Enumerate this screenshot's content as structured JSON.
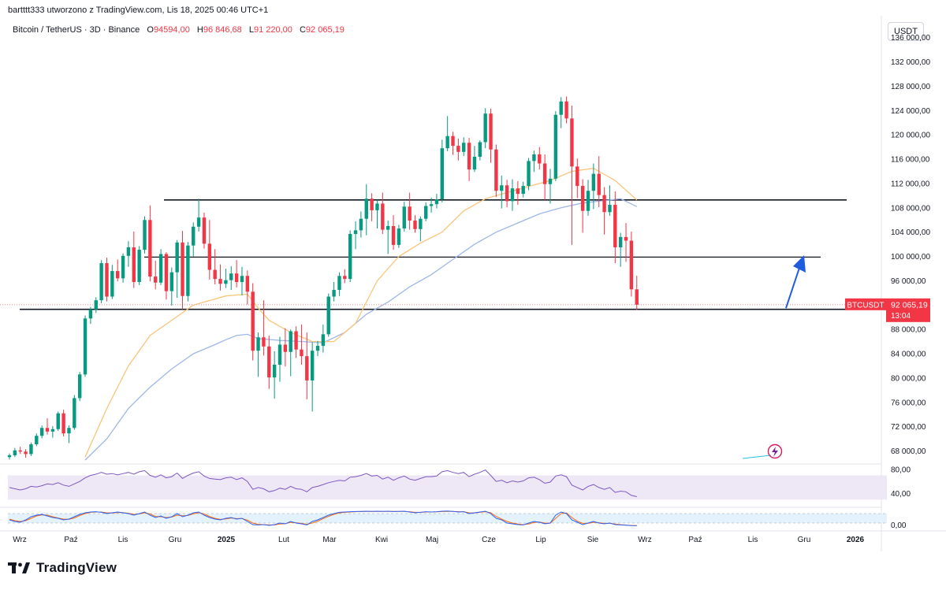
{
  "header": {
    "published_by": "bartttt333 utworzono z TradingView.com, Lis 18, 2025 00:46 UTC+1",
    "symbol": "Bitcoin / TetherUS · 3D · Binance",
    "ohlc": [
      {
        "k": "O",
        "v": "94594,00"
      },
      {
        "k": "H",
        "v": "96 846,68"
      },
      {
        "k": "L",
        "v": "91 220,00"
      },
      {
        "k": "C",
        "v": "92 065,19"
      }
    ],
    "currency": "USDT"
  },
  "brand": {
    "name": "TradingView"
  },
  "colors": {
    "up": "#089981",
    "down": "#f23645",
    "ma_fast": "#f9c57a",
    "ma_slow": "#9db7e8",
    "rsi": "#7e57c2",
    "rsi_band": "#ede7f6",
    "stoch_k": "#2962ff",
    "stoch_d": "#ff6d00",
    "level": "#131722",
    "arrow": "#1e5de0"
  },
  "chart_data": {
    "type": "candlestick",
    "interval": "3D",
    "y_axis": {
      "min": 66000,
      "max": 137000,
      "ticks": [
        {
          "v": 136000,
          "label": "136 000,00"
        },
        {
          "v": 132000,
          "label": "132 000,00"
        },
        {
          "v": 128000,
          "label": "128 000,00"
        },
        {
          "v": 124000,
          "label": "124 000,00"
        },
        {
          "v": 120000,
          "label": "120 000,00"
        },
        {
          "v": 116000,
          "label": "116 000,00"
        },
        {
          "v": 112000,
          "label": "112 000,00"
        },
        {
          "v": 108000,
          "label": "108 000,00"
        },
        {
          "v": 104000,
          "label": "104 000,00"
        },
        {
          "v": 100000,
          "label": "100 000,00"
        },
        {
          "v": 96000,
          "label": "96 000,00"
        },
        {
          "v": 88000,
          "label": "88 000,00"
        },
        {
          "v": 84000,
          "label": "84 000,00"
        },
        {
          "v": 80000,
          "label": "80 000,00"
        },
        {
          "v": 76000,
          "label": "76 000,00"
        },
        {
          "v": 72000,
          "label": "72 000,00"
        },
        {
          "v": 68000,
          "label": "68 000,00"
        }
      ]
    },
    "x_labels": [
      "Wrz",
      "Paź",
      "Lis",
      "Gru",
      "2025",
      "Lut",
      "Mar",
      "Kwi",
      "Maj",
      "Cze",
      "Lip",
      "Sie",
      "Wrz",
      "Paź",
      "Lis",
      "Gru",
      "2026"
    ],
    "last_price": {
      "symbol": "BTCUSDT",
      "price": "92 065,19",
      "countdown": "13:04",
      "value": 92065
    },
    "levels": [
      {
        "price": 109300,
        "from_label": "Gru",
        "to_label": "Gru"
      },
      {
        "price": 99900,
        "from_label": "Lis",
        "to_label": "Gru"
      },
      {
        "price": 91300,
        "from_label": "Wrz",
        "to_label": "Gru"
      }
    ],
    "candles": [
      [
        67000,
        67600,
        66600,
        67300
      ],
      [
        67300,
        68500,
        67000,
        68100
      ],
      [
        68100,
        68700,
        67500,
        67900
      ],
      [
        67900,
        68300,
        66900,
        67500
      ],
      [
        67500,
        69400,
        67200,
        69100
      ],
      [
        69100,
        70900,
        68800,
        70500
      ],
      [
        70500,
        72200,
        70100,
        71800
      ],
      [
        71800,
        73400,
        70700,
        71200
      ],
      [
        71200,
        72100,
        70200,
        71600
      ],
      [
        71600,
        74500,
        71300,
        74200
      ],
      [
        74200,
        74800,
        70400,
        70900
      ],
      [
        70900,
        72200,
        69300,
        71800
      ],
      [
        71800,
        77200,
        71500,
        76700
      ],
      [
        76700,
        81000,
        76200,
        80600
      ],
      [
        80600,
        90300,
        80200,
        89800
      ],
      [
        89800,
        91700,
        88900,
        91300
      ],
      [
        91300,
        93300,
        90700,
        92800
      ],
      [
        92800,
        99400,
        92300,
        98900
      ],
      [
        98900,
        99800,
        92600,
        93400
      ],
      [
        93400,
        98600,
        93000,
        97600
      ],
      [
        97600,
        99500,
        95900,
        96400
      ],
      [
        96400,
        100500,
        95700,
        100100
      ],
      [
        100100,
        102500,
        98300,
        101500
      ],
      [
        101500,
        104100,
        94800,
        95800
      ],
      [
        95800,
        101700,
        95300,
        101100
      ],
      [
        101100,
        106600,
        100500,
        106000
      ],
      [
        106000,
        108400,
        95900,
        96700
      ],
      [
        96700,
        99300,
        94600,
        95700
      ],
      [
        95700,
        101200,
        95300,
        100400
      ],
      [
        100400,
        100700,
        92900,
        94300
      ],
      [
        94300,
        98200,
        91900,
        97400
      ],
      [
        97400,
        102700,
        93200,
        102300
      ],
      [
        102300,
        104200,
        91300,
        93500
      ],
      [
        93500,
        102400,
        92600,
        101800
      ],
      [
        101800,
        105600,
        100000,
        104900
      ],
      [
        104900,
        109500,
        104100,
        106400
      ],
      [
        106400,
        107200,
        101300,
        102100
      ],
      [
        102100,
        106000,
        96200,
        97800
      ],
      [
        97800,
        101200,
        95400,
        96300
      ],
      [
        96300,
        98700,
        94400,
        95500
      ],
      [
        95500,
        98000,
        94800,
        96100
      ],
      [
        96100,
        98400,
        94500,
        97200
      ],
      [
        97200,
        99400,
        94900,
        95800
      ],
      [
        95800,
        98300,
        93600,
        96800
      ],
      [
        96800,
        97700,
        92100,
        94200
      ],
      [
        94200,
        95600,
        82900,
        84500
      ],
      [
        84500,
        87500,
        80200,
        86700
      ],
      [
        86700,
        92800,
        83700,
        85200
      ],
      [
        85200,
        87000,
        78200,
        80100
      ],
      [
        80100,
        84400,
        76600,
        82200
      ],
      [
        82200,
        86800,
        79400,
        85500
      ],
      [
        85500,
        88200,
        81900,
        84300
      ],
      [
        84300,
        88000,
        80300,
        87700
      ],
      [
        87700,
        88500,
        83300,
        84700
      ],
      [
        84700,
        88800,
        82200,
        83600
      ],
      [
        83600,
        87500,
        76500,
        79600
      ],
      [
        79600,
        85900,
        74500,
        84500
      ],
      [
        84500,
        86100,
        83600,
        85300
      ],
      [
        85300,
        88800,
        84200,
        87200
      ],
      [
        87200,
        93900,
        86800,
        93400
      ],
      [
        93400,
        95800,
        92600,
        94500
      ],
      [
        94500,
        97400,
        93500,
        96800
      ],
      [
        96800,
        97900,
        95600,
        96300
      ],
      [
        96300,
        104300,
        95800,
        103700
      ],
      [
        103700,
        105800,
        101200,
        104300
      ],
      [
        104300,
        107400,
        103100,
        106200
      ],
      [
        106200,
        111900,
        103500,
        109500
      ],
      [
        109500,
        110400,
        105800,
        107600
      ],
      [
        107600,
        109300,
        104600,
        108700
      ],
      [
        108700,
        110500,
        103700,
        104400
      ],
      [
        104400,
        105900,
        100400,
        105000
      ],
      [
        105000,
        106800,
        101100,
        101900
      ],
      [
        101900,
        105200,
        101400,
        104600
      ],
      [
        104600,
        109000,
        104100,
        108200
      ],
      [
        108200,
        110500,
        104400,
        105900
      ],
      [
        105900,
        106800,
        103900,
        104500
      ],
      [
        104500,
        106600,
        102500,
        106200
      ],
      [
        106200,
        108900,
        105800,
        108300
      ],
      [
        108300,
        109700,
        107200,
        108600
      ],
      [
        108600,
        110300,
        107900,
        109400
      ],
      [
        109400,
        119200,
        108900,
        117800
      ],
      [
        117800,
        123100,
        117300,
        119800
      ],
      [
        119800,
        120500,
        116700,
        118200
      ],
      [
        118200,
        119400,
        115800,
        117200
      ],
      [
        117200,
        119600,
        116500,
        118700
      ],
      [
        118700,
        119500,
        112400,
        114300
      ],
      [
        114300,
        118200,
        113900,
        116400
      ],
      [
        116400,
        119100,
        115800,
        118800
      ],
      [
        118800,
        124400,
        117800,
        123500
      ],
      [
        123500,
        124300,
        115400,
        117600
      ],
      [
        117600,
        118400,
        109800,
        110800
      ],
      [
        110800,
        113300,
        107900,
        111700
      ],
      [
        111700,
        112600,
        108100,
        109100
      ],
      [
        109100,
        112700,
        107500,
        111200
      ],
      [
        111200,
        112400,
        108500,
        110300
      ],
      [
        110300,
        112300,
        109700,
        111600
      ],
      [
        111600,
        116200,
        110900,
        115700
      ],
      [
        115700,
        117400,
        113900,
        116800
      ],
      [
        116800,
        118000,
        114300,
        115300
      ],
      [
        115300,
        116800,
        109300,
        111900
      ],
      [
        111900,
        114400,
        108700,
        112800
      ],
      [
        112800,
        123900,
        112400,
        123300
      ],
      [
        123300,
        126200,
        121100,
        125500
      ],
      [
        125500,
        126300,
        121900,
        122700
      ],
      [
        122700,
        124800,
        101900,
        114800
      ],
      [
        114800,
        116100,
        109600,
        111600
      ],
      [
        111600,
        112700,
        103900,
        107500
      ],
      [
        107500,
        112600,
        106700,
        110800
      ],
      [
        110800,
        115300,
        107800,
        113600
      ],
      [
        113600,
        116500,
        108100,
        110100
      ],
      [
        110100,
        111400,
        103600,
        107300
      ],
      [
        107300,
        111700,
        106700,
        108500
      ],
      [
        108500,
        110700,
        98900,
        101500
      ],
      [
        101500,
        103900,
        98300,
        103200
      ],
      [
        103200,
        105500,
        99100,
        102600
      ],
      [
        102600,
        104100,
        93400,
        94600
      ],
      [
        94594,
        96847,
        91220,
        92065
      ]
    ],
    "ma_fast": [
      [
        14,
        67000
      ],
      [
        18,
        75000
      ],
      [
        22,
        82000
      ],
      [
        26,
        87000
      ],
      [
        30,
        89500
      ],
      [
        34,
        92000
      ],
      [
        40,
        93500
      ],
      [
        44,
        93800
      ],
      [
        46,
        91500
      ],
      [
        48,
        89500
      ],
      [
        52,
        87500
      ],
      [
        56,
        86000
      ],
      [
        60,
        86000
      ],
      [
        64,
        89000
      ],
      [
        68,
        96000
      ],
      [
        72,
        100000
      ],
      [
        76,
        102200
      ],
      [
        80,
        104000
      ],
      [
        84,
        107500
      ],
      [
        88,
        109500
      ],
      [
        92,
        110500
      ],
      [
        96,
        111500
      ],
      [
        100,
        112500
      ],
      [
        104,
        114000
      ],
      [
        108,
        114500
      ],
      [
        112,
        112500
      ],
      [
        116,
        109300
      ]
    ],
    "ma_slow": [
      [
        14,
        66500
      ],
      [
        18,
        70000
      ],
      [
        22,
        75000
      ],
      [
        26,
        78500
      ],
      [
        30,
        81500
      ],
      [
        34,
        84000
      ],
      [
        38,
        85500
      ],
      [
        40,
        86300
      ],
      [
        42,
        87000
      ],
      [
        44,
        87200
      ],
      [
        46,
        86500
      ],
      [
        50,
        86200
      ],
      [
        54,
        86000
      ],
      [
        58,
        85800
      ],
      [
        62,
        87500
      ],
      [
        66,
        90500
      ],
      [
        70,
        92500
      ],
      [
        74,
        95000
      ],
      [
        78,
        97000
      ],
      [
        82,
        99500
      ],
      [
        86,
        102000
      ],
      [
        90,
        104000
      ],
      [
        94,
        105500
      ],
      [
        98,
        107000
      ],
      [
        102,
        108000
      ],
      [
        106,
        108800
      ],
      [
        110,
        109200
      ],
      [
        113,
        109500
      ],
      [
        116,
        108200
      ]
    ],
    "rsi": {
      "min": 20,
      "max": 85,
      "band": [
        30,
        70
      ],
      "ticks": [
        {
          "v": 80,
          "label": "80,00"
        },
        {
          "v": 40,
          "label": "40,00"
        }
      ],
      "values": [
        50,
        48,
        46,
        48,
        52,
        51,
        53,
        56,
        55,
        58,
        54,
        52,
        56,
        60,
        66,
        70,
        72,
        75,
        72,
        73,
        71,
        73,
        75,
        72,
        76,
        78,
        70,
        67,
        71,
        66,
        68,
        74,
        65,
        70,
        74,
        76,
        69,
        65,
        64,
        63,
        66,
        67,
        63,
        66,
        60,
        47,
        50,
        48,
        43,
        45,
        49,
        47,
        52,
        48,
        47,
        43,
        50,
        52,
        55,
        58,
        60,
        62,
        61,
        67,
        68,
        70,
        73,
        69,
        70,
        64,
        67,
        62,
        66,
        69,
        64,
        62,
        65,
        68,
        68,
        69,
        76,
        78,
        75,
        73,
        75,
        68,
        72,
        75,
        79,
        70,
        60,
        62,
        58,
        61,
        59,
        61,
        66,
        67,
        63,
        57,
        59,
        69,
        71,
        68,
        54,
        50,
        46,
        52,
        55,
        50,
        47,
        50,
        42,
        44,
        43,
        37,
        35
      ]
    },
    "stoch": {
      "min": 0,
      "max": 100,
      "ticks": [
        {
          "v": 0,
          "label": "0,00"
        }
      ],
      "k": [
        40,
        30,
        25,
        40,
        60,
        70,
        75,
        65,
        55,
        50,
        40,
        45,
        60,
        75,
        85,
        90,
        92,
        88,
        80,
        85,
        90,
        85,
        80,
        70,
        80,
        90,
        70,
        55,
        65,
        50,
        60,
        80,
        60,
        70,
        85,
        90,
        70,
        55,
        45,
        40,
        50,
        55,
        45,
        50,
        30,
        10,
        8,
        10,
        5,
        10,
        20,
        15,
        30,
        20,
        15,
        8,
        30,
        40,
        55,
        70,
        80,
        88,
        90,
        92,
        93,
        94,
        95,
        94,
        95,
        94,
        95,
        93,
        94,
        95,
        90,
        85,
        88,
        92,
        90,
        92,
        95,
        96,
        94,
        90,
        92,
        80,
        85,
        90,
        95,
        80,
        50,
        40,
        20,
        15,
        10,
        8,
        20,
        30,
        25,
        15,
        20,
        70,
        90,
        80,
        40,
        25,
        10,
        20,
        30,
        20,
        15,
        20,
        10,
        8,
        6,
        4,
        3
      ],
      "d": [
        45,
        35,
        30,
        35,
        50,
        65,
        72,
        70,
        60,
        52,
        45,
        44,
        52,
        68,
        80,
        88,
        90,
        90,
        85,
        84,
        86,
        86,
        82,
        75,
        78,
        85,
        78,
        62,
        60,
        55,
        58,
        70,
        66,
        68,
        78,
        86,
        78,
        62,
        50,
        43,
        46,
        52,
        48,
        49,
        38,
        20,
        12,
        10,
        8,
        8,
        14,
        16,
        24,
        22,
        18,
        12,
        20,
        32,
        48,
        62,
        75,
        84,
        88,
        90,
        92,
        93,
        94,
        94,
        94,
        94,
        94,
        94,
        94,
        94,
        92,
        88,
        88,
        90,
        90,
        91,
        93,
        94,
        94,
        92,
        92,
        85,
        84,
        88,
        92,
        86,
        62,
        45,
        30,
        20,
        14,
        10,
        14,
        24,
        26,
        20,
        19,
        50,
        80,
        84,
        55,
        32,
        18,
        18,
        25,
        22,
        18,
        18,
        14,
        10,
        7,
        5,
        4
      ]
    },
    "annotation": {
      "type": "arrow",
      "from_price": 91500,
      "to_price": 100200,
      "direction": "up"
    }
  }
}
